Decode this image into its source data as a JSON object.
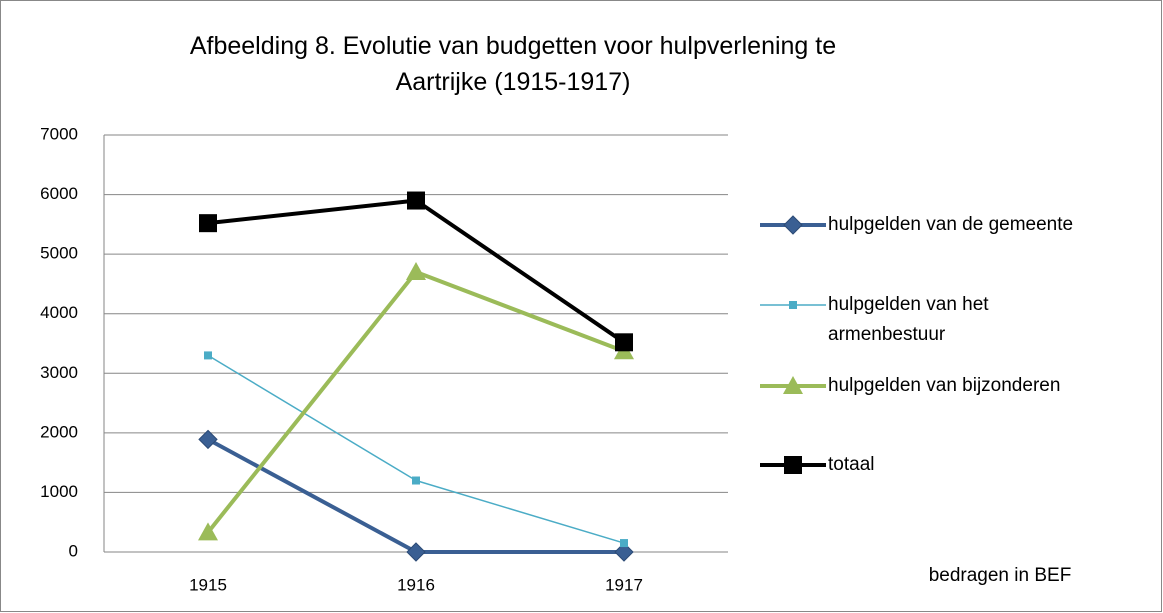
{
  "chart_data": {
    "type": "line",
    "title": "Afbeelding 8. Evolutie van budgetten voor hulpverlening te Aartrijke (1915-1917)",
    "categories": [
      "1915",
      "1916",
      "1917"
    ],
    "series": [
      {
        "name": "hulpgelden van de gemeente",
        "color": "#3a5f93",
        "values": [
          1890,
          0,
          0
        ]
      },
      {
        "name": "hulpgelden van het armenbestuur",
        "color": "#4bacc6",
        "values": [
          3300,
          1200,
          150
        ]
      },
      {
        "name": "hulpgelden van bijzonderen",
        "color": "#9bbb59",
        "values": [
          330,
          4700,
          3370
        ]
      },
      {
        "name": "totaal",
        "color": "#000000",
        "values": [
          5520,
          5900,
          3520
        ]
      }
    ],
    "ylim": [
      0,
      7000
    ],
    "yticks": [
      0,
      1000,
      2000,
      3000,
      4000,
      5000,
      6000,
      7000
    ],
    "grid": true,
    "legend": "right",
    "annotation": "bedragen in BEF"
  }
}
